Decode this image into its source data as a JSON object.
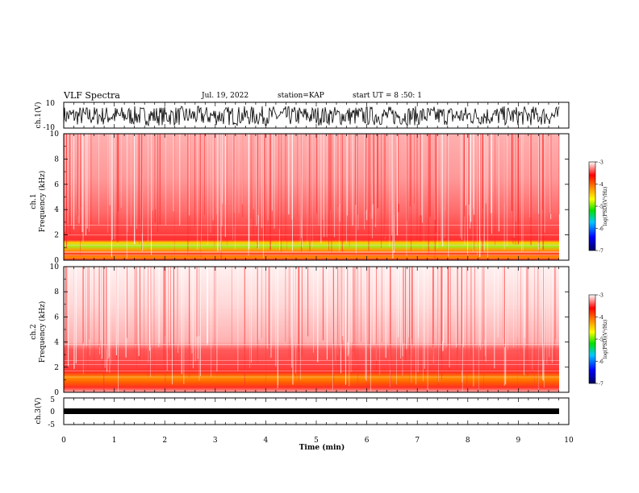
{
  "header": {
    "title": "VLF Spectra",
    "date": "Jul. 19, 2022",
    "station": "station=KAP",
    "start_ut": "start UT =  8 :50: 1"
  },
  "chart_data": [
    {
      "type": "line",
      "panel": "ch1-waveform",
      "ylabel": "ch.1(V)",
      "ylim": [
        -10,
        10
      ],
      "yticks": [
        "10",
        "-10"
      ],
      "xlim": [
        0,
        10
      ],
      "description_values": {
        "typical_range": [
          -8,
          7
        ]
      }
    },
    {
      "type": "heatmap",
      "panel": "ch1-spectrogram",
      "ylabel": "ch.1\nFrequency (kHz)",
      "ylim": [
        0,
        10
      ],
      "yticks": [
        "0",
        "2",
        "4",
        "6",
        "8",
        "10"
      ],
      "xlim": [
        0,
        9.8
      ],
      "colorbar": {
        "label": "log(PSD)(V²/Hz)",
        "range": [
          -7,
          -3
        ],
        "ticks": [
          "-3",
          "-4",
          "-5",
          "-6",
          "-7"
        ]
      }
    },
    {
      "type": "heatmap",
      "panel": "ch2-spectrogram",
      "ylabel": "ch.2\nFrequency (kHz)",
      "ylim": [
        0,
        10
      ],
      "yticks": [
        "0",
        "2",
        "4",
        "6",
        "8",
        "10"
      ],
      "xlim": [
        0,
        9.8
      ],
      "colorbar": {
        "label": "log(PSD)(V²/Hz)",
        "range": [
          -7,
          -3
        ],
        "ticks": [
          "-3",
          "-4",
          "-5",
          "-6",
          "-7"
        ]
      }
    },
    {
      "type": "line",
      "panel": "ch3-waveform",
      "ylabel": "ch.3(V)",
      "ylim": [
        -5,
        5
      ],
      "yticks": [
        "5",
        "0",
        "-5"
      ],
      "xlim": [
        0,
        10
      ],
      "description_values": {
        "typical_range": [
          -1.2,
          -0.6
        ]
      }
    }
  ],
  "xaxis": {
    "label": "Time (min)",
    "ticks": [
      "0",
      "1",
      "2",
      "3",
      "4",
      "5",
      "6",
      "7",
      "8",
      "9",
      "10"
    ]
  },
  "colors": {
    "red": "#ff2020",
    "orange": "#ff8000",
    "yellow": "#e8e800",
    "green": "#30e030",
    "blue": "#0000e0"
  }
}
